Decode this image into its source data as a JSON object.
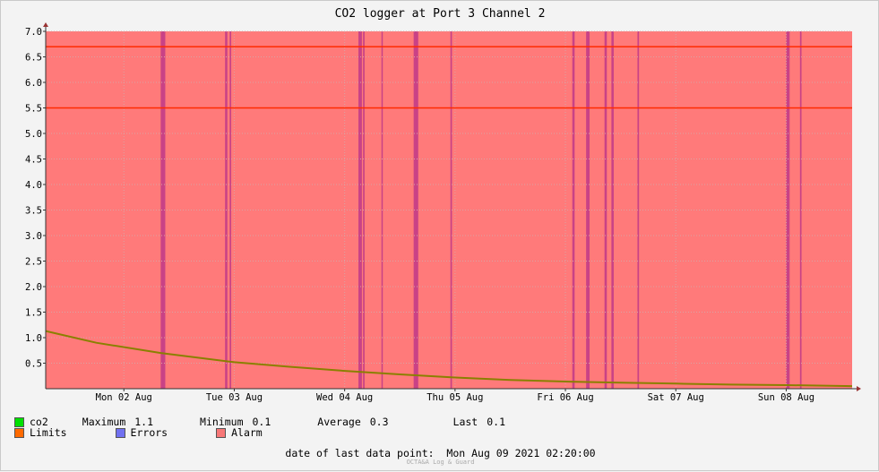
{
  "chart_data": {
    "type": "line",
    "title": "CO2 logger at Port 3 Channel 2",
    "xlabel": "",
    "ylabel": "",
    "ylim": [
      0,
      7.0
    ],
    "yticks": [
      "0.5",
      "1.0",
      "1.5",
      "2.0",
      "2.5",
      "3.0",
      "3.5",
      "4.0",
      "4.5",
      "5.0",
      "5.5",
      "6.0",
      "6.5",
      "7.0"
    ],
    "xrange": [
      "2021-08-01T19:00",
      "2021-08-09T02:20"
    ],
    "xticks": [
      {
        "t": "2021-08-02T12:00",
        "label": "Mon 02 Aug"
      },
      {
        "t": "2021-08-03T12:00",
        "label": "Tue 03 Aug"
      },
      {
        "t": "2021-08-04T12:00",
        "label": "Wed 04 Aug"
      },
      {
        "t": "2021-08-05T12:00",
        "label": "Thu 05 Aug"
      },
      {
        "t": "2021-08-06T12:00",
        "label": "Fri 06 Aug"
      },
      {
        "t": "2021-08-07T12:00",
        "label": "Sat 07 Aug"
      },
      {
        "t": "2021-08-08T12:00",
        "label": "Sun 08 Aug"
      }
    ],
    "grid": true,
    "background_alarm": true,
    "limits": [
      5.5,
      6.7
    ],
    "series": [
      {
        "name": "co2",
        "x": [
          "2021-08-01T19:00",
          "2021-08-02T06:00",
          "2021-08-02T20:00",
          "2021-08-03T12:00",
          "2021-08-04T00:00",
          "2021-08-04T12:00",
          "2021-08-05T00:00",
          "2021-08-05T12:00",
          "2021-08-06T00:00",
          "2021-08-06T12:00",
          "2021-08-07T00:00",
          "2021-08-07T12:00",
          "2021-08-08T00:00",
          "2021-08-08T12:00",
          "2021-08-09T02:20"
        ],
        "values": [
          1.13,
          0.9,
          0.7,
          0.52,
          0.43,
          0.35,
          0.28,
          0.22,
          0.17,
          0.14,
          0.12,
          0.1,
          0.08,
          0.07,
          0.05
        ]
      }
    ],
    "alarm_bands": [
      {
        "start": "2021-08-02T20:00",
        "end": "2021-08-02T21:00"
      },
      {
        "start": "2021-08-03T10:00",
        "end": "2021-08-03T10:30"
      },
      {
        "start": "2021-08-03T11:00",
        "end": "2021-08-03T11:20"
      },
      {
        "start": "2021-08-04T15:00",
        "end": "2021-08-04T15:45"
      },
      {
        "start": "2021-08-04T16:00",
        "end": "2021-08-04T16:20"
      },
      {
        "start": "2021-08-04T20:00",
        "end": "2021-08-04T20:15"
      },
      {
        "start": "2021-08-05T03:00",
        "end": "2021-08-05T04:00"
      },
      {
        "start": "2021-08-05T11:00",
        "end": "2021-08-05T11:20"
      },
      {
        "start": "2021-08-06T13:30",
        "end": "2021-08-06T14:00"
      },
      {
        "start": "2021-08-06T16:30",
        "end": "2021-08-06T17:15"
      },
      {
        "start": "2021-08-06T20:30",
        "end": "2021-08-06T21:00"
      },
      {
        "start": "2021-08-06T22:00",
        "end": "2021-08-06T22:30"
      },
      {
        "start": "2021-08-07T03:40",
        "end": "2021-08-07T04:00"
      },
      {
        "start": "2021-08-08T12:00",
        "end": "2021-08-08T12:45"
      },
      {
        "start": "2021-08-08T15:00",
        "end": "2021-08-08T15:20"
      }
    ]
  },
  "legend": {
    "co2": {
      "label": "co2",
      "color": "#00e000"
    },
    "limits": {
      "label": "Limits",
      "color": "#ff6a00"
    },
    "errors": {
      "label": "Errors",
      "color": "#7070f0"
    },
    "alarm": {
      "label": "Alarm",
      "color": "#f77777"
    },
    "stats": {
      "maximum_label": "Maximum",
      "maximum": "1.1",
      "minimum_label": "Minimum",
      "minimum": "0.1",
      "average_label": "Average",
      "average": "0.3",
      "last_label": "Last",
      "last": "0.1"
    }
  },
  "last_point": {
    "label": "date of last data point:",
    "value": "Mon Aug 09 2021 02:20:00"
  },
  "footer": "OCTA&A Log & Guard",
  "colors": {
    "alarm_bg": "#ff7a7a",
    "alarm_band": "#c03888",
    "limit_line": "#ff2a00",
    "series_line": "#8a8000",
    "grid": "#d9a3a3",
    "axis_arrow": "#993333"
  }
}
